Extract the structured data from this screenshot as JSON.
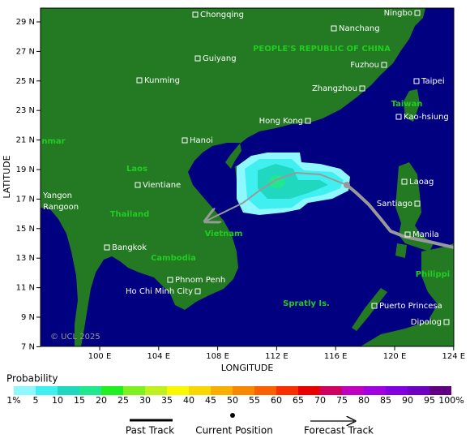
{
  "map": {
    "x_label": "LONGITUDE",
    "y_label": "LATITUDE",
    "x_ticks": [
      "100 E",
      "104 E",
      "108 E",
      "112 E",
      "116 E",
      "120 E",
      "124 E"
    ],
    "y_ticks": [
      "29 N",
      "27 N",
      "25 N",
      "23 N",
      "21 N",
      "19 N",
      "17 N",
      "15 N",
      "13 N",
      "11 N",
      "9 N",
      "7 N"
    ],
    "cities": [
      "Chongqing",
      "Ningbo",
      "Nanchang",
      "Guiyang",
      "Fuzhou",
      "Kunming",
      "Taipei",
      "Zhangzhou",
      "Hong Kong",
      "Kao-hsiung",
      "Hanoi",
      "Vientiane",
      "Laoag",
      "Yangon",
      "Rangoon",
      "Santiago",
      "Manila",
      "Bangkok",
      "Phnom Penh",
      "Ho Chi Minh City",
      "Puerto Princesa",
      "Dipolog"
    ],
    "regions": [
      "PEOPLE'S REPUBLIC OF CHINA",
      "Taiwan",
      "nmar",
      "Laos",
      "Thailand",
      "Vietnam",
      "Cambodia",
      "Philippi",
      "Spratly Is."
    ],
    "credit": "© UCL 2025"
  },
  "legend": {
    "title": "Probability",
    "scale_labels": [
      "1%",
      "5",
      "10",
      "15",
      "20",
      "25",
      "30",
      "35",
      "40",
      "45",
      "50",
      "55",
      "60",
      "65",
      "70",
      "75",
      "80",
      "85",
      "90",
      "95",
      "100%"
    ],
    "scale_colors": [
      "#8ff8ff",
      "#40f0f0",
      "#20d8c0",
      "#20e890",
      "#20f020",
      "#80f020",
      "#c0f020",
      "#f8f800",
      "#f8d800",
      "#f8b000",
      "#f88800",
      "#f86000",
      "#f83000",
      "#e80000",
      "#d00060",
      "#c000c0",
      "#a000e0",
      "#8000e0",
      "#7000c0",
      "#600080"
    ],
    "past_track": "Past Track",
    "current_position": "Current Position",
    "forecast_track": "Forecast Track"
  }
}
